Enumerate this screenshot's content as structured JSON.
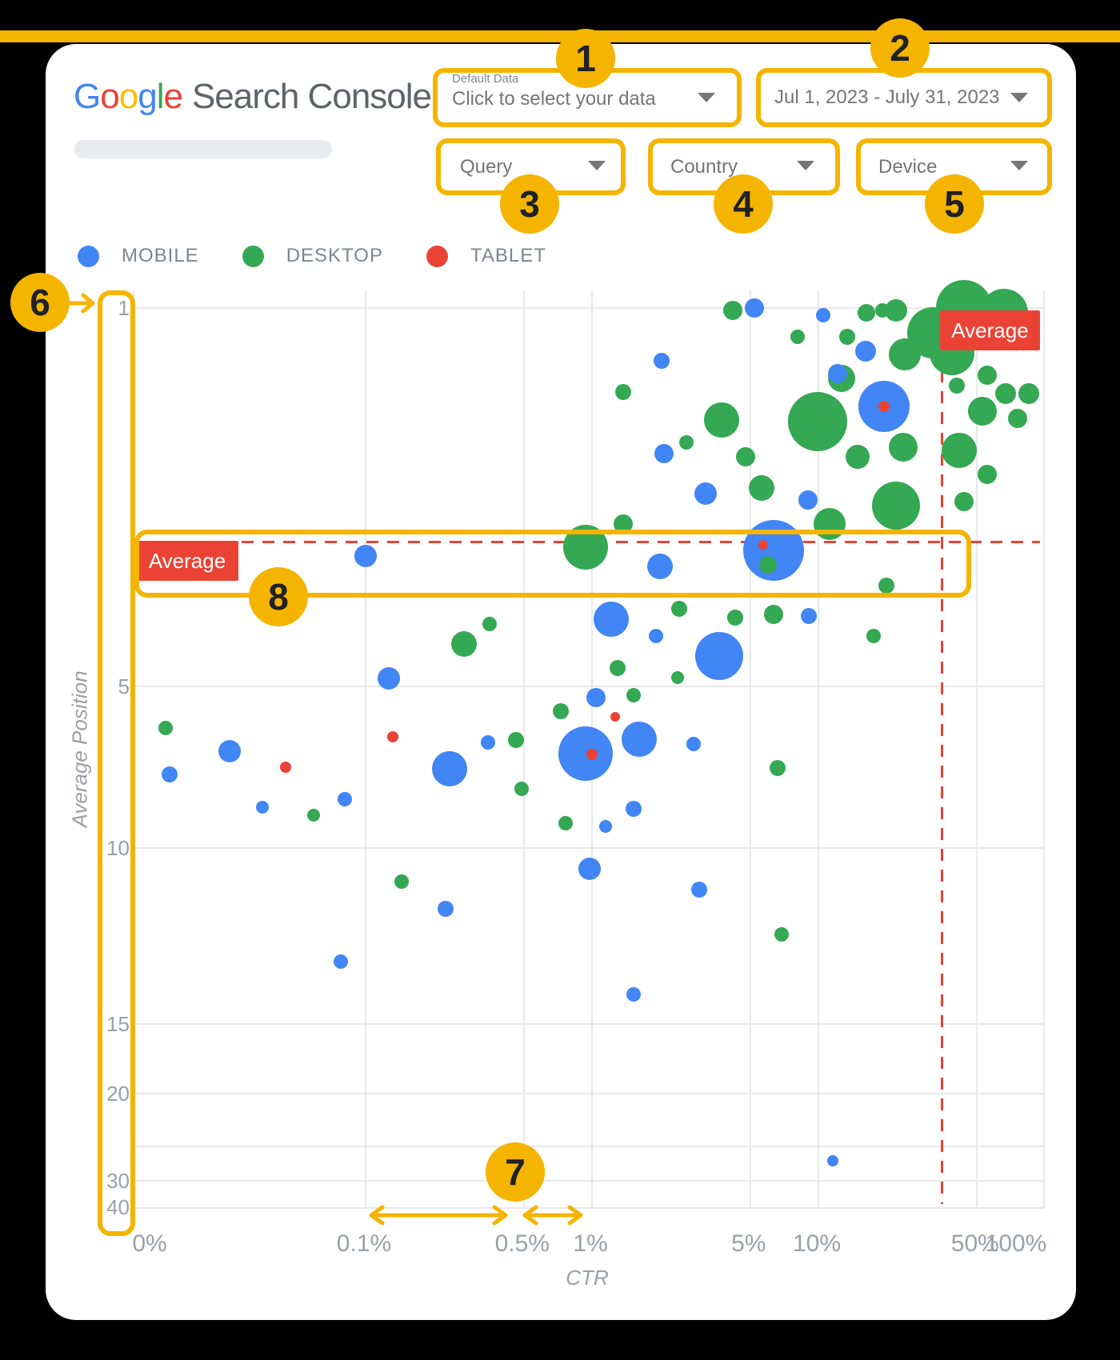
{
  "page": {
    "accent_yellow": "#F4B400",
    "card_background": "#FFFFFF",
    "page_background": "#000000"
  },
  "header": {
    "logo_letters": [
      {
        "ch": "G",
        "color": "#4285F4"
      },
      {
        "ch": "o",
        "color": "#EA4335"
      },
      {
        "ch": "o",
        "color": "#FBBC05"
      },
      {
        "ch": "g",
        "color": "#4285F4"
      },
      {
        "ch": "l",
        "color": "#34A853"
      },
      {
        "ch": "e",
        "color": "#EA4335"
      }
    ],
    "logo_suffix": "Search Console",
    "controls": {
      "data_source": {
        "label": "Default Data",
        "value": "Click to select your data"
      },
      "date_range": {
        "value": "Jul 1, 2023 - July 31, 2023"
      },
      "filters": [
        {
          "label": "Query"
        },
        {
          "label": "Country"
        },
        {
          "label": "Device"
        }
      ]
    }
  },
  "legend": {
    "items": [
      {
        "label": "MOBILE",
        "color": "#4285F4"
      },
      {
        "label": "DESKTOP",
        "color": "#34A853"
      },
      {
        "label": "TABLET",
        "color": "#EA4335"
      }
    ]
  },
  "annotations": {
    "callout_numbers": [
      "1",
      "2",
      "3",
      "4",
      "5",
      "6",
      "7",
      "8"
    ],
    "average_label": "Average",
    "average_line_color": "#EA4335"
  },
  "chart_data": {
    "type": "scatter",
    "subtype": "bubble",
    "title": "",
    "xlabel": "CTR",
    "ylabel": "Average Position",
    "x_scale": "log",
    "y_scale": "log-reversed",
    "x_ticks": [
      {
        "label": "0%",
        "ctr": null,
        "grid": false
      },
      {
        "label": "0.1%",
        "ctr": 0.1,
        "grid": true
      },
      {
        "label": "0.5%",
        "ctr": 0.5,
        "grid": true
      },
      {
        "label": "1%",
        "ctr": 1,
        "grid": true
      },
      {
        "label": "5%",
        "ctr": 5,
        "grid": true
      },
      {
        "label": "10%",
        "ctr": 10,
        "grid": true
      },
      {
        "label": "50%",
        "ctr": 50,
        "grid": true
      },
      {
        "label": "100%",
        "ctr": 100,
        "grid": false
      }
    ],
    "y_tick_labels": [
      1,
      5,
      10,
      15,
      20,
      30,
      40
    ],
    "y_gridlines": [
      1,
      5,
      10,
      15,
      20,
      25,
      30
    ],
    "average_ctr_percent": 35,
    "average_position": 2.7,
    "point_format": "[ctr_percent, avg_position, radius_px]",
    "series": [
      {
        "name": "MOBILE",
        "color": "#4285F4",
        "points": [
          [
            10.5,
            1.03,
            9
          ],
          [
            16.2,
            1.2,
            13
          ],
          [
            12.2,
            1.32,
            12
          ],
          [
            19.5,
            1.52,
            32
          ],
          [
            9.0,
            2.26,
            12
          ],
          [
            2.03,
            1.25,
            10
          ],
          [
            2.08,
            1.86,
            12
          ],
          [
            5.2,
            1.0,
            12
          ],
          [
            3.17,
            2.2,
            14
          ],
          [
            6.34,
            2.8,
            38
          ],
          [
            2.0,
            3.0,
            16
          ],
          [
            0.1,
            2.87,
            14
          ],
          [
            1.22,
            3.76,
            22
          ],
          [
            9.1,
            3.7,
            10
          ],
          [
            3.64,
            4.4,
            30
          ],
          [
            1.92,
            4.03,
            9
          ],
          [
            0.127,
            4.84,
            14
          ],
          [
            1.04,
            5.24,
            12
          ],
          [
            1.62,
            6.28,
            22
          ],
          [
            0.94,
            6.68,
            34
          ],
          [
            0.348,
            6.35,
            9
          ],
          [
            0.235,
            7.13,
            22
          ],
          [
            0.025,
            6.6,
            14
          ],
          [
            0.0136,
            7.3,
            10
          ],
          [
            2.81,
            6.4,
            9
          ],
          [
            0.081,
            8.1,
            9
          ],
          [
            0.035,
            8.4,
            8
          ],
          [
            1.15,
            9.1,
            8
          ],
          [
            1.53,
            8.45,
            10
          ],
          [
            0.976,
            10.5,
            14
          ],
          [
            0.225,
            11.5,
            10
          ],
          [
            2.97,
            11.0,
            10
          ],
          [
            0.078,
            13.0,
            9
          ],
          [
            1.53,
            14.0,
            9
          ],
          [
            11.6,
            27.0,
            7
          ]
        ]
      },
      {
        "name": "DESKTOP",
        "color": "#34A853",
        "points": [
          [
            16.3,
            1.02,
            11
          ],
          [
            19.2,
            1.01,
            9
          ],
          [
            22,
            1.01,
            14
          ],
          [
            32,
            1.11,
            32
          ],
          [
            44,
            1.0,
            35
          ],
          [
            66,
            1.02,
            30
          ],
          [
            39,
            1.21,
            28
          ],
          [
            24,
            1.22,
            20
          ],
          [
            13.4,
            1.13,
            10
          ],
          [
            8.1,
            1.13,
            9
          ],
          [
            12.7,
            1.35,
            17
          ],
          [
            9.9,
            1.62,
            37
          ],
          [
            41,
            1.39,
            10
          ],
          [
            55.5,
            1.33,
            12
          ],
          [
            67,
            1.44,
            13
          ],
          [
            85,
            1.44,
            13
          ],
          [
            53,
            1.55,
            18
          ],
          [
            76,
            1.6,
            12
          ],
          [
            42,
            1.83,
            22
          ],
          [
            55.5,
            2.03,
            12
          ],
          [
            23.7,
            1.81,
            18
          ],
          [
            14.9,
            1.88,
            15
          ],
          [
            22,
            2.32,
            30
          ],
          [
            44,
            2.28,
            12
          ],
          [
            20,
            3.26,
            10
          ],
          [
            17.5,
            4.03,
            9
          ],
          [
            1.37,
            1.43,
            10
          ],
          [
            2.61,
            1.77,
            9
          ],
          [
            3.74,
            1.61,
            22
          ],
          [
            4.77,
            1.88,
            12
          ],
          [
            4.2,
            1.01,
            12
          ],
          [
            5.6,
            2.15,
            16
          ],
          [
            11.2,
            2.51,
            20
          ],
          [
            0.94,
            2.77,
            28
          ],
          [
            1.37,
            2.51,
            12
          ],
          [
            6.0,
            2.98,
            11
          ],
          [
            2.42,
            3.59,
            10
          ],
          [
            4.29,
            3.73,
            10
          ],
          [
            6.34,
            3.68,
            12
          ],
          [
            1.3,
            4.62,
            10
          ],
          [
            2.39,
            4.82,
            8
          ],
          [
            0.272,
            4.17,
            16
          ],
          [
            0.353,
            3.83,
            9
          ],
          [
            1.53,
            5.2,
            9
          ],
          [
            0.73,
            5.56,
            10
          ],
          [
            0.46,
            6.3,
            10
          ],
          [
            0.0131,
            5.98,
            9
          ],
          [
            0.49,
            7.75,
            9
          ],
          [
            6.6,
            7.1,
            10
          ],
          [
            0.059,
            8.7,
            8
          ],
          [
            0.765,
            9.0,
            9
          ],
          [
            0.144,
            10.8,
            9
          ],
          [
            6.9,
            12.2,
            9
          ]
        ]
      },
      {
        "name": "TABLET",
        "color": "#EA4335",
        "points": [
          [
            5.7,
            2.74,
            6
          ],
          [
            19.5,
            1.52,
            7
          ],
          [
            1.27,
            5.7,
            6
          ],
          [
            1.0,
            6.7,
            7
          ],
          [
            0.0443,
            7.08,
            7
          ],
          [
            0.132,
            6.2,
            7
          ]
        ]
      }
    ]
  }
}
